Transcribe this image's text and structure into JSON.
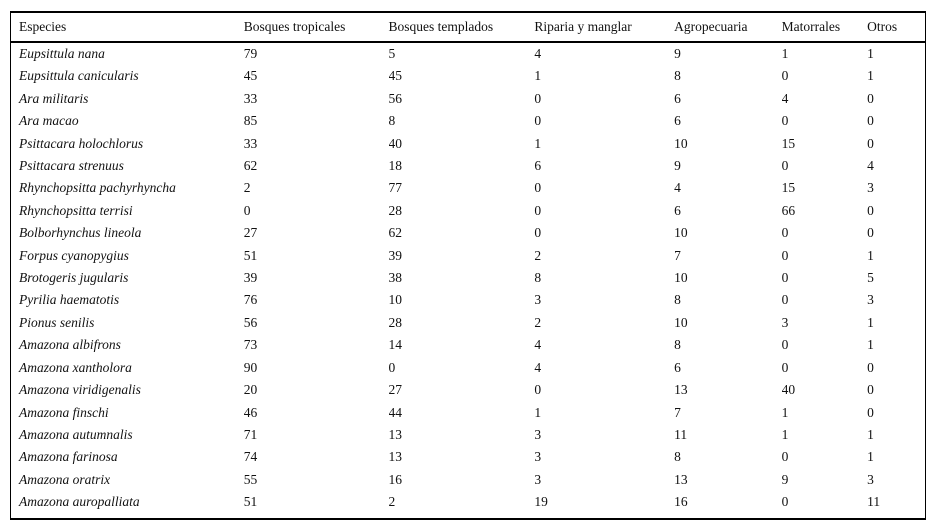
{
  "table": {
    "columns": [
      "Especies",
      "Bosques tropicales",
      "Bosques templados",
      "Riparia y manglar",
      "Agropecuaria",
      "Matorrales",
      "Otros"
    ],
    "rows": [
      {
        "species": "Eupsittula nana",
        "values": [
          79,
          5,
          4,
          9,
          1,
          1
        ]
      },
      {
        "species": "Eupsittula canicularis",
        "values": [
          45,
          45,
          1,
          8,
          0,
          1
        ]
      },
      {
        "species": "Ara militaris",
        "values": [
          33,
          56,
          0,
          6,
          4,
          0
        ]
      },
      {
        "species": "Ara macao",
        "values": [
          85,
          8,
          0,
          6,
          0,
          0
        ]
      },
      {
        "species": "Psittacara holochlorus",
        "values": [
          33,
          40,
          1,
          10,
          15,
          0
        ]
      },
      {
        "species": "Psittacara strenuus",
        "values": [
          62,
          18,
          6,
          9,
          0,
          4
        ]
      },
      {
        "species": "Rhynchopsitta pachyrhyncha",
        "values": [
          2,
          77,
          0,
          4,
          15,
          3
        ]
      },
      {
        "species": "Rhynchopsitta terrisi",
        "values": [
          0,
          28,
          0,
          6,
          66,
          0
        ]
      },
      {
        "species": "Bolborhynchus lineola",
        "values": [
          27,
          62,
          0,
          10,
          0,
          0
        ]
      },
      {
        "species": "Forpus cyanopygius",
        "values": [
          51,
          39,
          2,
          7,
          0,
          1
        ]
      },
      {
        "species": "Brotogeris jugularis",
        "values": [
          39,
          38,
          8,
          10,
          0,
          5
        ]
      },
      {
        "species": "Pyrilia haematotis",
        "values": [
          76,
          10,
          3,
          8,
          0,
          3
        ]
      },
      {
        "species": "Pionus senilis",
        "values": [
          56,
          28,
          2,
          10,
          3,
          1
        ]
      },
      {
        "species": "Amazona albifrons",
        "values": [
          73,
          14,
          4,
          8,
          0,
          1
        ]
      },
      {
        "species": "Amazona xantholora",
        "values": [
          90,
          0,
          4,
          6,
          0,
          0
        ]
      },
      {
        "species": "Amazona viridigenalis",
        "values": [
          20,
          27,
          0,
          13,
          40,
          0
        ]
      },
      {
        "species": "Amazona finschi",
        "values": [
          46,
          44,
          1,
          7,
          1,
          0
        ]
      },
      {
        "species": "Amazona autumnalis",
        "values": [
          71,
          13,
          3,
          11,
          1,
          1
        ]
      },
      {
        "species": "Amazona farinosa",
        "values": [
          74,
          13,
          3,
          8,
          0,
          1
        ]
      },
      {
        "species": "Amazona oratrix",
        "values": [
          55,
          16,
          3,
          13,
          9,
          3
        ]
      },
      {
        "species": "Amazona auropalliata",
        "values": [
          51,
          2,
          19,
          16,
          0,
          11
        ]
      }
    ]
  },
  "chart_data": {
    "type": "table",
    "title": "",
    "columns": [
      "Especies",
      "Bosques tropicales",
      "Bosques templados",
      "Riparia y manglar",
      "Agropecuaria",
      "Matorrales",
      "Otros"
    ],
    "series": [
      {
        "name": "Bosques tropicales",
        "values": [
          79,
          45,
          33,
          85,
          33,
          62,
          2,
          0,
          27,
          51,
          39,
          76,
          56,
          73,
          90,
          20,
          46,
          71,
          74,
          55,
          51
        ]
      },
      {
        "name": "Bosques templados",
        "values": [
          5,
          45,
          56,
          8,
          40,
          18,
          77,
          28,
          62,
          39,
          38,
          10,
          28,
          14,
          0,
          27,
          44,
          13,
          13,
          16,
          2
        ]
      },
      {
        "name": "Riparia y manglar",
        "values": [
          4,
          1,
          0,
          0,
          1,
          6,
          0,
          0,
          0,
          2,
          8,
          3,
          2,
          4,
          4,
          0,
          1,
          3,
          3,
          3,
          19
        ]
      },
      {
        "name": "Agropecuaria",
        "values": [
          9,
          8,
          6,
          6,
          10,
          9,
          4,
          6,
          10,
          7,
          10,
          8,
          10,
          8,
          6,
          13,
          7,
          11,
          8,
          13,
          16
        ]
      },
      {
        "name": "Matorrales",
        "values": [
          1,
          0,
          4,
          0,
          15,
          0,
          15,
          66,
          0,
          0,
          0,
          0,
          3,
          0,
          0,
          40,
          1,
          1,
          0,
          9,
          0
        ]
      },
      {
        "name": "Otros",
        "values": [
          1,
          1,
          0,
          0,
          0,
          4,
          3,
          0,
          0,
          1,
          5,
          3,
          1,
          1,
          0,
          0,
          0,
          1,
          1,
          3,
          11
        ]
      }
    ],
    "categories": [
      "Eupsittula nana",
      "Eupsittula canicularis",
      "Ara militaris",
      "Ara macao",
      "Psittacara holochlorus",
      "Psittacara strenuus",
      "Rhynchopsitta pachyrhyncha",
      "Rhynchopsitta terrisi",
      "Bolborhynchus lineola",
      "Forpus cyanopygius",
      "Brotogeris jugularis",
      "Pyrilia haematotis",
      "Pionus senilis",
      "Amazona albifrons",
      "Amazona xantholora",
      "Amazona viridigenalis",
      "Amazona finschi",
      "Amazona autumnalis",
      "Amazona farinosa",
      "Amazona oratrix",
      "Amazona auropalliata"
    ]
  }
}
